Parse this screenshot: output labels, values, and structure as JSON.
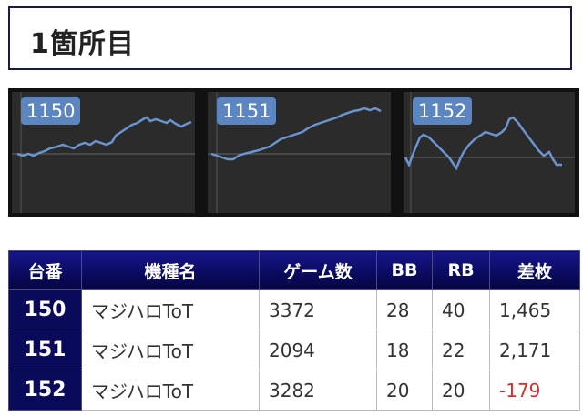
{
  "header": {
    "title": "1箇所目"
  },
  "graphs": [
    {
      "label": "1150"
    },
    {
      "label": "1151"
    },
    {
      "label": "1152"
    }
  ],
  "table": {
    "headers": [
      "台番",
      "機種名",
      "ゲーム数",
      "BB",
      "RB",
      "差枚"
    ],
    "rows": [
      {
        "number": "150",
        "model": "マジハロToT",
        "games": "3372",
        "bb": "28",
        "rb": "40",
        "diff": "1,465"
      },
      {
        "number": "151",
        "model": "マジハロToT",
        "games": "2094",
        "bb": "18",
        "rb": "22",
        "diff": "2,171"
      },
      {
        "number": "152",
        "model": "マジハロToT",
        "games": "3282",
        "bb": "20",
        "rb": "20",
        "diff": "-179"
      }
    ]
  },
  "colors": {
    "line": "#6b95d0",
    "negative": "#d03030",
    "header_bg": "#0a0a5e"
  }
}
